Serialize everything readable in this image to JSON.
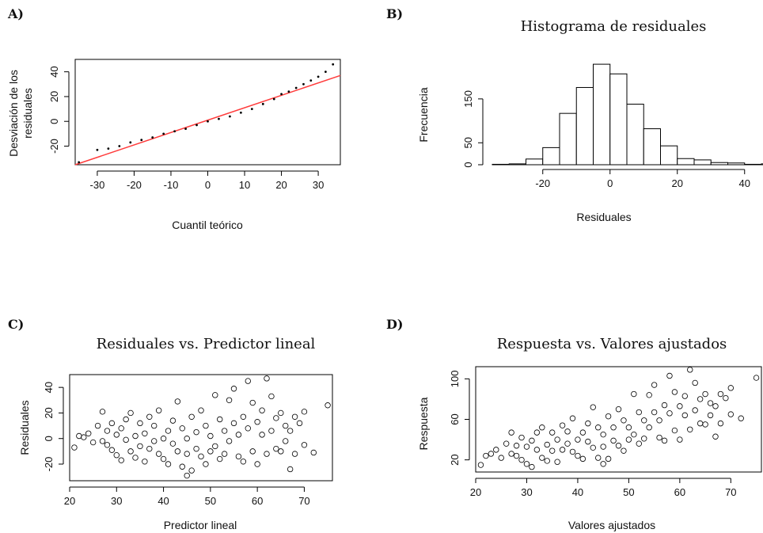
{
  "chart_data": [
    {
      "panel": "A)",
      "type": "scatter",
      "title": "",
      "xlabel": "Cuantil teórico",
      "ylabel_lines": [
        "Desviación de los",
        "residuales"
      ],
      "xlim": [
        -36,
        36
      ],
      "ylim": [
        -35,
        50
      ],
      "xticks": [
        -30,
        -20,
        -10,
        0,
        10,
        20,
        30
      ],
      "yticks": [
        -20,
        0,
        20,
        40
      ],
      "ytick_labels": [
        "-20",
        "0",
        "20",
        "40"
      ],
      "reference_line": {
        "x": [
          -36,
          36
        ],
        "y": [
          -35,
          37
        ],
        "color": "#ff3b3b"
      },
      "series": [
        {
          "points": [
            [
              -35,
              -33
            ],
            [
              -30,
              -23
            ],
            [
              -27,
              -22
            ],
            [
              -24,
              -20
            ],
            [
              -21,
              -17
            ],
            [
              -18,
              -15
            ],
            [
              -15,
              -13
            ],
            [
              -12,
              -10
            ],
            [
              -9,
              -8
            ],
            [
              -6,
              -6
            ],
            [
              -3,
              -3
            ],
            [
              0,
              0
            ],
            [
              3,
              2
            ],
            [
              6,
              4
            ],
            [
              9,
              7
            ],
            [
              12,
              10
            ],
            [
              15,
              14
            ],
            [
              18,
              18
            ],
            [
              20,
              22
            ],
            [
              22,
              24
            ],
            [
              24,
              27
            ],
            [
              26,
              30
            ],
            [
              28,
              33
            ],
            [
              30,
              36
            ],
            [
              32,
              40
            ],
            [
              34,
              46
            ]
          ]
        }
      ]
    },
    {
      "panel": "B)",
      "type": "bar",
      "title": "Histograma de residuales",
      "xlabel": "Residuales",
      "ylabel": "Frecuencia",
      "xlim": [
        -35,
        45
      ],
      "ylim": [
        0,
        240
      ],
      "xticks": [
        -20,
        0,
        20,
        40
      ],
      "yticks": [
        0,
        50,
        150
      ],
      "bins": [
        {
          "from": -35,
          "to": -30,
          "count": 1
        },
        {
          "from": -30,
          "to": -25,
          "count": 2
        },
        {
          "from": -25,
          "to": -20,
          "count": 13
        },
        {
          "from": -20,
          "to": -15,
          "count": 39
        },
        {
          "from": -15,
          "to": -10,
          "count": 117
        },
        {
          "from": -10,
          "to": -5,
          "count": 176
        },
        {
          "from": -5,
          "to": 0,
          "count": 229
        },
        {
          "from": 0,
          "to": 5,
          "count": 207
        },
        {
          "from": 5,
          "to": 10,
          "count": 138
        },
        {
          "from": 10,
          "to": 15,
          "count": 82
        },
        {
          "from": 15,
          "to": 20,
          "count": 43
        },
        {
          "from": 20,
          "to": 25,
          "count": 14
        },
        {
          "from": 25,
          "to": 30,
          "count": 11
        },
        {
          "from": 30,
          "to": 35,
          "count": 5
        },
        {
          "from": 35,
          "to": 40,
          "count": 4
        },
        {
          "from": 40,
          "to": 45,
          "count": 1
        },
        {
          "from": 45,
          "to": 50,
          "count": 2
        }
      ]
    },
    {
      "panel": "C)",
      "type": "scatter",
      "title": "Residuales vs. Predictor lineal",
      "xlabel": "Predictor lineal",
      "ylabel": "Residuales",
      "xlim": [
        20,
        76
      ],
      "ylim": [
        -33,
        50
      ],
      "xticks": [
        20,
        30,
        40,
        50,
        60,
        70
      ],
      "yticks": [
        -20,
        0,
        20,
        40
      ],
      "series": [
        {
          "points": [
            [
              21,
              -7
            ],
            [
              22,
              2
            ],
            [
              23,
              1
            ],
            [
              24,
              4
            ],
            [
              25,
              -3
            ],
            [
              26,
              10
            ],
            [
              27,
              -2
            ],
            [
              27,
              21
            ],
            [
              28,
              -5
            ],
            [
              28,
              6
            ],
            [
              29,
              -9
            ],
            [
              29,
              12
            ],
            [
              30,
              -13
            ],
            [
              30,
              3
            ],
            [
              31,
              -17
            ],
            [
              31,
              8
            ],
            [
              32,
              -1
            ],
            [
              32,
              15
            ],
            [
              33,
              -10
            ],
            [
              33,
              20
            ],
            [
              34,
              2
            ],
            [
              34,
              -15
            ],
            [
              35,
              -6
            ],
            [
              35,
              12
            ],
            [
              36,
              -18
            ],
            [
              36,
              4
            ],
            [
              37,
              -8
            ],
            [
              37,
              17
            ],
            [
              38,
              -2
            ],
            [
              38,
              10
            ],
            [
              39,
              -12
            ],
            [
              39,
              22
            ],
            [
              40,
              0
            ],
            [
              40,
              -16
            ],
            [
              41,
              6
            ],
            [
              41,
              -20
            ],
            [
              42,
              14
            ],
            [
              42,
              -4
            ],
            [
              43,
              29
            ],
            [
              43,
              -10
            ],
            [
              44,
              -22
            ],
            [
              44,
              8
            ],
            [
              45,
              -29
            ],
            [
              45,
              -12
            ],
            [
              45,
              0
            ],
            [
              46,
              17
            ],
            [
              46,
              -25
            ],
            [
              47,
              5
            ],
            [
              47,
              -8
            ],
            [
              48,
              22
            ],
            [
              48,
              -14
            ],
            [
              49,
              -20
            ],
            [
              49,
              10
            ],
            [
              50,
              -10
            ],
            [
              50,
              2
            ],
            [
              51,
              34
            ],
            [
              51,
              -6
            ],
            [
              52,
              15
            ],
            [
              52,
              -16
            ],
            [
              53,
              6
            ],
            [
              53,
              -12
            ],
            [
              54,
              30
            ],
            [
              54,
              -2
            ],
            [
              55,
              39
            ],
            [
              55,
              12
            ],
            [
              56,
              -14
            ],
            [
              56,
              3
            ],
            [
              57,
              17
            ],
            [
              57,
              -18
            ],
            [
              58,
              8
            ],
            [
              58,
              45
            ],
            [
              59,
              -10
            ],
            [
              59,
              28
            ],
            [
              60,
              13
            ],
            [
              60,
              -20
            ],
            [
              61,
              3
            ],
            [
              61,
              22
            ],
            [
              62,
              47
            ],
            [
              62,
              -12
            ],
            [
              63,
              33
            ],
            [
              63,
              6
            ],
            [
              64,
              16
            ],
            [
              64,
              -8
            ],
            [
              65,
              -10
            ],
            [
              65,
              20
            ],
            [
              66,
              -2
            ],
            [
              66,
              10
            ],
            [
              67,
              -24
            ],
            [
              67,
              6
            ],
            [
              68,
              17
            ],
            [
              68,
              -12
            ],
            [
              69,
              12
            ],
            [
              70,
              21
            ],
            [
              70,
              -5
            ],
            [
              72,
              -11
            ],
            [
              75,
              26
            ]
          ]
        }
      ]
    },
    {
      "panel": "D)",
      "type": "scatter",
      "title": "Respuesta vs. Valores  ajustados",
      "xlabel": "Valores ajustados",
      "ylabel": "Respuesta",
      "xlim": [
        20,
        76
      ],
      "ylim": [
        8,
        112
      ],
      "xticks": [
        20,
        30,
        40,
        50,
        60,
        70
      ],
      "yticks": [
        20,
        60,
        100
      ],
      "series": [
        {
          "points": [
            [
              21,
              15
            ],
            [
              22,
              24
            ],
            [
              23,
              26
            ],
            [
              24,
              30
            ],
            [
              25,
              22
            ],
            [
              26,
              36
            ],
            [
              27,
              26
            ],
            [
              27,
              47
            ],
            [
              28,
              24
            ],
            [
              28,
              34
            ],
            [
              29,
              20
            ],
            [
              29,
              42
            ],
            [
              30,
              16
            ],
            [
              30,
              33
            ],
            [
              31,
              13
            ],
            [
              31,
              39
            ],
            [
              32,
              30
            ],
            [
              32,
              47
            ],
            [
              33,
              22
            ],
            [
              33,
              52
            ],
            [
              34,
              35
            ],
            [
              34,
              19
            ],
            [
              35,
              29
            ],
            [
              35,
              47
            ],
            [
              36,
              18
            ],
            [
              36,
              40
            ],
            [
              37,
              30
            ],
            [
              37,
              54
            ],
            [
              38,
              36
            ],
            [
              38,
              48
            ],
            [
              39,
              28
            ],
            [
              39,
              61
            ],
            [
              40,
              40
            ],
            [
              40,
              24
            ],
            [
              41,
              47
            ],
            [
              41,
              21
            ],
            [
              42,
              56
            ],
            [
              42,
              38
            ],
            [
              43,
              72
            ],
            [
              43,
              32
            ],
            [
              44,
              22
            ],
            [
              44,
              52
            ],
            [
              45,
              16
            ],
            [
              45,
              33
            ],
            [
              45,
              45
            ],
            [
              46,
              63
            ],
            [
              46,
              21
            ],
            [
              47,
              52
            ],
            [
              47,
              39
            ],
            [
              48,
              70
            ],
            [
              48,
              34
            ],
            [
              49,
              29
            ],
            [
              49,
              59
            ],
            [
              50,
              40
            ],
            [
              50,
              52
            ],
            [
              51,
              85
            ],
            [
              51,
              45
            ],
            [
              52,
              67
            ],
            [
              52,
              36
            ],
            [
              53,
              59
            ],
            [
              53,
              41
            ],
            [
              54,
              84
            ],
            [
              54,
              52
            ],
            [
              55,
              94
            ],
            [
              55,
              67
            ],
            [
              56,
              42
            ],
            [
              56,
              59
            ],
            [
              57,
              74
            ],
            [
              57,
              39
            ],
            [
              58,
              66
            ],
            [
              58,
              103
            ],
            [
              59,
              49
            ],
            [
              59,
              87
            ],
            [
              60,
              73
            ],
            [
              60,
              40
            ],
            [
              61,
              64
            ],
            [
              61,
              83
            ],
            [
              62,
              109
            ],
            [
              62,
              50
            ],
            [
              63,
              96
            ],
            [
              63,
              69
            ],
            [
              64,
              80
            ],
            [
              64,
              56
            ],
            [
              65,
              55
            ],
            [
              65,
              85
            ],
            [
              66,
              64
            ],
            [
              66,
              76
            ],
            [
              67,
              43
            ],
            [
              67,
              73
            ],
            [
              68,
              85
            ],
            [
              68,
              56
            ],
            [
              69,
              81
            ],
            [
              70,
              91
            ],
            [
              70,
              65
            ],
            [
              72,
              61
            ],
            [
              75,
              101
            ]
          ]
        }
      ]
    }
  ]
}
